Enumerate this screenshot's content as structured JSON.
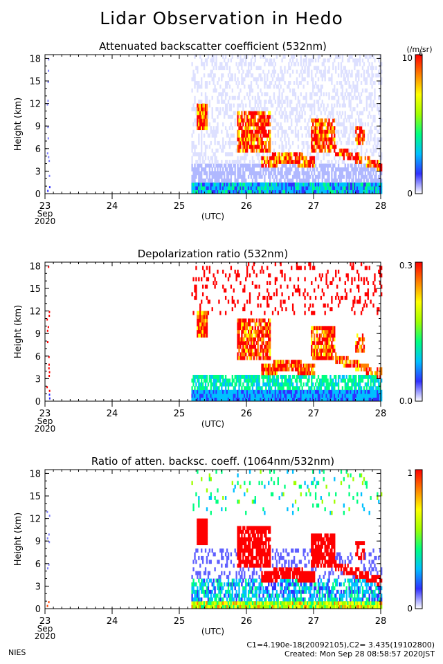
{
  "page": {
    "title": "Lidar Observation in Hedo",
    "footer_left": "NIES",
    "footer_line1": "C1=4.190e-18(20092105),C2= 3.435(19102800)",
    "footer_line2": "Created: Mon Sep 28 08:58:57 2020JST"
  },
  "chart_data": [
    {
      "type": "heatmap",
      "title": "Attenuated backscatter coefficient (532nm)",
      "ylabel": "Height (km)",
      "xlabel": "(UTC)",
      "x_ticks": [
        "23",
        "24",
        "25",
        "26",
        "27",
        "28"
      ],
      "x_tick_sub": [
        "Sep",
        "2020"
      ],
      "xlim": [
        23,
        28
      ],
      "y_ticks": [
        "0",
        "3",
        "6",
        "9",
        "12",
        "15",
        "18"
      ],
      "ylim": [
        0,
        18.5
      ],
      "colorbar": {
        "min_label": "0",
        "max_label": "10",
        "max_exponent": "-6",
        "unit": "(/m/sr)"
      },
      "colormap": [
        "#ffffff",
        "#3030ff",
        "#00c0ff",
        "#00ff80",
        "#a0ff00",
        "#ffff00",
        "#ff8000",
        "#ff0000"
      ]
    },
    {
      "type": "heatmap",
      "title": "Depolarization ratio (532nm)",
      "ylabel": "Height (km)",
      "xlabel": "(UTC)",
      "x_ticks": [
        "23",
        "24",
        "25",
        "26",
        "27",
        "28"
      ],
      "x_tick_sub": [
        "Sep",
        "2020"
      ],
      "xlim": [
        23,
        28
      ],
      "y_ticks": [
        "0",
        "3",
        "6",
        "9",
        "12",
        "15",
        "18"
      ],
      "ylim": [
        0,
        18.5
      ],
      "colorbar": {
        "min_label": "0.0",
        "max_label": "0.3"
      },
      "colormap": [
        "#ffffff",
        "#3030ff",
        "#00c0ff",
        "#00ff80",
        "#a0ff00",
        "#ffff00",
        "#ff8000",
        "#ff0000"
      ]
    },
    {
      "type": "heatmap",
      "title": "Ratio of atten. backsc. coeff. (1064nm/532nm)",
      "ylabel": "Height (km)",
      "xlabel": "(UTC)",
      "x_ticks": [
        "23",
        "24",
        "25",
        "26",
        "27",
        "28"
      ],
      "x_tick_sub": [
        "Sep",
        "2020"
      ],
      "xlim": [
        23,
        28
      ],
      "y_ticks": [
        "0",
        "3",
        "6",
        "9",
        "12",
        "15",
        "18"
      ],
      "ylim": [
        0,
        18.5
      ],
      "colorbar": {
        "min_label": "0",
        "max_label": "1"
      },
      "colormap": [
        "#ffffff",
        "#3030ff",
        "#00c0ff",
        "#00ff80",
        "#a0ff00",
        "#ffff00",
        "#ff8000",
        "#ff0000"
      ]
    }
  ]
}
